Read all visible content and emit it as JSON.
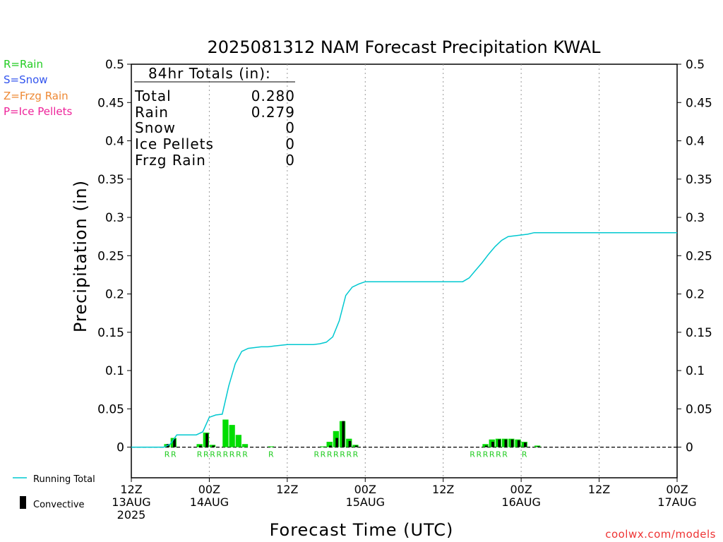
{
  "chart_data": {
    "type": "bar",
    "title": "2025081312 NAM Forecast Precipitation KWAL",
    "ylabel": "Precipitation (in)",
    "xlabel": "Forecast Time (UTC)",
    "ylim": [
      -0.04,
      0.5
    ],
    "xlim": [
      0,
      84
    ],
    "yticks": [
      "0",
      "0.05",
      "0.1",
      "0.15",
      "0.2",
      "0.25",
      "0.3",
      "0.35",
      "0.4",
      "0.45",
      "0.5"
    ],
    "ytick_values": [
      0,
      0.05,
      0.1,
      0.15,
      0.2,
      0.25,
      0.3,
      0.35,
      0.4,
      0.45,
      0.5
    ],
    "xticks": [
      {
        "hour": 0,
        "line1": "12Z",
        "line2": "13AUG",
        "line3": "2025"
      },
      {
        "hour": 12,
        "line1": "00Z",
        "line2": "14AUG",
        "line3": ""
      },
      {
        "hour": 24,
        "line1": "12Z",
        "line2": "",
        "line3": ""
      },
      {
        "hour": 36,
        "line1": "00Z",
        "line2": "15AUG",
        "line3": ""
      },
      {
        "hour": 48,
        "line1": "12Z",
        "line2": "",
        "line3": ""
      },
      {
        "hour": 60,
        "line1": "00Z",
        "line2": "16AUG",
        "line3": ""
      },
      {
        "hour": 72,
        "line1": "12Z",
        "line2": "",
        "line3": ""
      },
      {
        "hour": 84,
        "line1": "00Z",
        "line2": "17AUG",
        "line3": ""
      }
    ],
    "vertical_grid_hours": [
      12,
      24,
      36,
      48,
      60,
      72
    ],
    "grid": "dotted vertical",
    "precip_colors": {
      "rain": "#00dd00",
      "convective": "#000000",
      "running_total": "#00c8d0"
    },
    "bars": [
      {
        "hour": 6,
        "total": 0.004,
        "convective": 0.004
      },
      {
        "hour": 7,
        "total": 0.012,
        "convective": 0.011
      },
      {
        "hour": 11,
        "total": 0.004,
        "convective": 0.002
      },
      {
        "hour": 12,
        "total": 0.019,
        "convective": 0.018
      },
      {
        "hour": 13,
        "total": 0.003,
        "convective": 0.002
      },
      {
        "hour": 15,
        "total": 0.036,
        "convective": 0.0
      },
      {
        "hour": 16,
        "total": 0.029,
        "convective": 0.0
      },
      {
        "hour": 17,
        "total": 0.016,
        "convective": 0.0
      },
      {
        "hour": 18,
        "total": 0.004,
        "convective": 0.0
      },
      {
        "hour": 22,
        "total": 0.001,
        "convective": 0.0
      },
      {
        "hour": 30,
        "total": 0.001,
        "convective": 0.0
      },
      {
        "hour": 31,
        "total": 0.007,
        "convective": 0.002
      },
      {
        "hour": 32,
        "total": 0.021,
        "convective": 0.012
      },
      {
        "hour": 33,
        "total": 0.034,
        "convective": 0.034
      },
      {
        "hour": 34,
        "total": 0.011,
        "convective": 0.008
      },
      {
        "hour": 35,
        "total": 0.003,
        "convective": 0.002
      },
      {
        "hour": 55,
        "total": 0.004,
        "convective": 0.002
      },
      {
        "hour": 56,
        "total": 0.01,
        "convective": 0.007
      },
      {
        "hour": 57,
        "total": 0.011,
        "convective": 0.01
      },
      {
        "hour": 58,
        "total": 0.011,
        "convective": 0.01
      },
      {
        "hour": 59,
        "total": 0.011,
        "convective": 0.01
      },
      {
        "hour": 60,
        "total": 0.01,
        "convective": 0.009
      },
      {
        "hour": 61,
        "total": 0.007,
        "convective": 0.006
      },
      {
        "hour": 63,
        "total": 0.002,
        "convective": 0.001
      }
    ],
    "running_total": {
      "x": [
        0,
        5,
        6,
        7,
        10,
        11,
        12,
        13,
        14,
        15,
        16,
        17,
        18,
        19,
        20,
        21,
        22,
        23,
        24,
        25,
        26,
        27,
        28,
        29,
        30,
        31,
        32,
        33,
        34,
        35,
        36,
        40,
        45,
        50,
        51,
        52,
        53,
        54,
        55,
        56,
        57,
        58,
        59,
        60,
        61,
        62,
        66,
        72,
        84
      ],
      "y": [
        0,
        0,
        0.004,
        0.016,
        0.016,
        0.02,
        0.039,
        0.042,
        0.043,
        0.08,
        0.109,
        0.125,
        0.129,
        0.13,
        0.131,
        0.131,
        0.132,
        0.133,
        0.134,
        0.134,
        0.134,
        0.134,
        0.134,
        0.135,
        0.137,
        0.144,
        0.165,
        0.198,
        0.209,
        0.213,
        0.216,
        0.216,
        0.216,
        0.216,
        0.216,
        0.221,
        0.231,
        0.241,
        0.252,
        0.262,
        0.27,
        0.275,
        0.276,
        0.277,
        0.278,
        0.28,
        0.28,
        0.28,
        0.28
      ]
    },
    "type_labels": [
      {
        "hour": 6,
        "text": "R"
      },
      {
        "hour": 7,
        "text": "R"
      },
      {
        "hour": 11,
        "text": "R"
      },
      {
        "hour": 12,
        "text": "R"
      },
      {
        "hour": 13,
        "text": "R"
      },
      {
        "hour": 14,
        "text": "R"
      },
      {
        "hour": 15,
        "text": "R"
      },
      {
        "hour": 16,
        "text": "R"
      },
      {
        "hour": 17,
        "text": "R"
      },
      {
        "hour": 18,
        "text": "R"
      },
      {
        "hour": 22,
        "text": "R"
      },
      {
        "hour": 29,
        "text": "R"
      },
      {
        "hour": 30,
        "text": "R"
      },
      {
        "hour": 31,
        "text": "R"
      },
      {
        "hour": 32,
        "text": "R"
      },
      {
        "hour": 33,
        "text": "R"
      },
      {
        "hour": 34,
        "text": "R"
      },
      {
        "hour": 35,
        "text": "R"
      },
      {
        "hour": 53,
        "text": "R"
      },
      {
        "hour": 54,
        "text": "R"
      },
      {
        "hour": 55,
        "text": "R"
      },
      {
        "hour": 56,
        "text": "R"
      },
      {
        "hour": 57,
        "text": "R"
      },
      {
        "hour": 58,
        "text": "R"
      },
      {
        "hour": 61,
        "text": "R"
      }
    ]
  },
  "totals_box": {
    "heading": "84hr Totals (in):",
    "rows": [
      {
        "label": "Total",
        "value": "0.280"
      },
      {
        "label": "Rain",
        "value": "0.279"
      },
      {
        "label": "Snow",
        "value": "0"
      },
      {
        "label": "Ice Pellets",
        "value": "0"
      },
      {
        "label": "Frzg Rain",
        "value": "0"
      }
    ]
  },
  "type_legend": [
    {
      "text": "R=Rain",
      "color": "#22cc22"
    },
    {
      "text": "S=Snow",
      "color": "#3355ee"
    },
    {
      "text": "Z=Frzg Rain",
      "color": "#ee8833"
    },
    {
      "text": "P=Ice Pellets",
      "color": "#ee2299"
    }
  ],
  "series_legend": {
    "running_total": "Running Total",
    "convective": "Convective"
  },
  "credit": "coolwx.com/models"
}
